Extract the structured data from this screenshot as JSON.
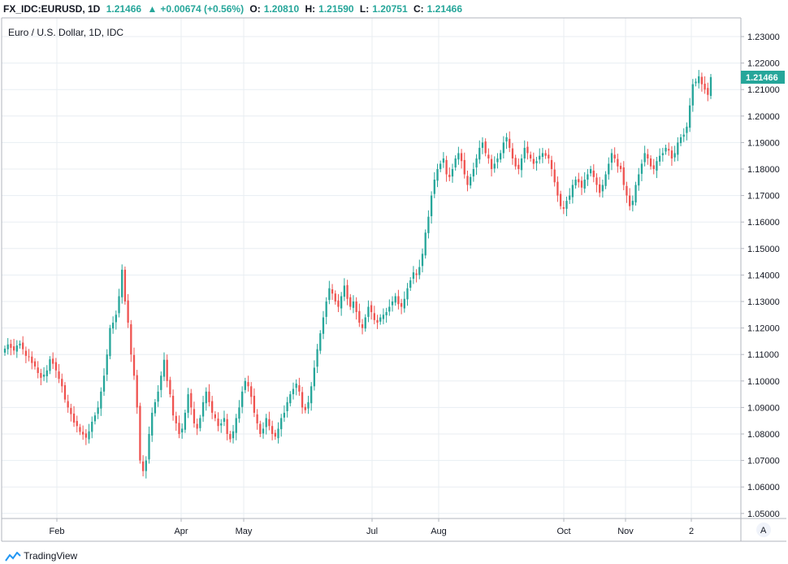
{
  "header": {
    "symbol": "FX_IDC:EURUSD, 1D",
    "last": "1.21466",
    "change": "+0.00674 (+0.56%)",
    "o_label": "O:",
    "o_val": "1.20810",
    "h_label": "H:",
    "h_val": "1.21590",
    "l_label": "L:",
    "l_val": "1.20751",
    "c_label": "C:",
    "c_val": "1.21466"
  },
  "footer": {
    "brand": "TradingView"
  },
  "colors": {
    "up": "#26a69a",
    "down": "#ef5350",
    "grid": "#e8eef2",
    "axis": "#b2b5be"
  },
  "chart_data": {
    "type": "candlestick",
    "title": "Euro / U.S. Dollar, 1D, IDC",
    "ylim": [
      1.045,
      1.235
    ],
    "y_ticks": [
      "1.05000",
      "1.06000",
      "1.07000",
      "1.08000",
      "1.09000",
      "1.10000",
      "1.11000",
      "1.12000",
      "1.13000",
      "1.14000",
      "1.15000",
      "1.16000",
      "1.17000",
      "1.18000",
      "1.19000",
      "1.20000",
      "1.21000",
      "1.22000",
      "1.23000"
    ],
    "x_ticks": [
      "Feb",
      "Apr",
      "May",
      "Jul",
      "Aug",
      "Oct",
      "Nov",
      "2"
    ],
    "last_price_label": "1.21466",
    "scale_mode_label": "A",
    "grid": true,
    "series": [
      {
        "name": "EURUSD",
        "close_path": [
          1.1122,
          1.1138,
          1.1125,
          1.1115,
          1.1134,
          1.1141,
          1.112,
          1.1095,
          1.109,
          1.1068,
          1.1055,
          1.103,
          1.1012,
          1.1024,
          1.104,
          1.1082,
          1.1065,
          1.104,
          1.1008,
          1.098,
          1.093,
          1.09,
          1.0875,
          1.0843,
          1.083,
          1.0808,
          1.0798,
          1.0786,
          1.081,
          1.0846,
          1.087,
          1.09,
          1.096,
          1.102,
          1.11,
          1.12,
          1.122,
          1.125,
          1.132,
          1.142,
          1.13,
          1.122,
          1.11,
          1.102,
          1.09,
          1.07,
          1.066,
          1.07,
          1.08,
          1.088,
          1.092,
          1.096,
          1.102,
          1.108,
          1.1,
          1.095,
          1.087,
          1.084,
          1.08,
          1.082,
          1.088,
          1.095,
          1.09,
          1.084,
          1.082,
          1.086,
          1.092,
          1.096,
          1.092,
          1.088,
          1.086,
          1.083,
          1.084,
          1.086,
          1.08,
          1.078,
          1.081,
          1.086,
          1.09,
          1.096,
          1.1,
          1.098,
          1.094,
          1.088,
          1.084,
          1.08,
          1.082,
          1.086,
          1.083,
          1.08,
          1.079,
          1.082,
          1.086,
          1.088,
          1.092,
          1.095,
          1.097,
          1.099,
          1.096,
          1.09,
          1.089,
          1.092,
          1.098,
          1.105,
          1.112,
          1.118,
          1.124,
          1.13,
          1.135,
          1.133,
          1.13,
          1.128,
          1.132,
          1.136,
          1.131,
          1.128,
          1.13,
          1.126,
          1.122,
          1.12,
          1.124,
          1.128,
          1.126,
          1.123,
          1.122,
          1.124,
          1.125,
          1.126,
          1.128,
          1.13,
          1.132,
          1.129,
          1.128,
          1.131,
          1.135,
          1.138,
          1.141,
          1.14,
          1.143,
          1.148,
          1.156,
          1.162,
          1.17,
          1.176,
          1.18,
          1.182,
          1.184,
          1.178,
          1.177,
          1.18,
          1.184,
          1.186,
          1.183,
          1.178,
          1.174,
          1.177,
          1.18,
          1.184,
          1.188,
          1.19,
          1.186,
          1.184,
          1.18,
          1.182,
          1.184,
          1.186,
          1.19,
          1.192,
          1.188,
          1.184,
          1.181,
          1.18,
          1.184,
          1.188,
          1.186,
          1.184,
          1.182,
          1.183,
          1.185,
          1.186,
          1.185,
          1.184,
          1.18,
          1.175,
          1.17,
          1.166,
          1.165,
          1.168,
          1.17,
          1.174,
          1.176,
          1.175,
          1.173,
          1.176,
          1.178,
          1.18,
          1.177,
          1.174,
          1.171,
          1.174,
          1.178,
          1.182,
          1.186,
          1.184,
          1.181,
          1.18,
          1.174,
          1.17,
          1.166,
          1.168,
          1.174,
          1.178,
          1.182,
          1.186,
          1.184,
          1.181,
          1.18,
          1.183,
          1.185,
          1.186,
          1.188,
          1.187,
          1.184,
          1.186,
          1.19,
          1.192,
          1.193,
          1.196,
          1.204,
          1.212,
          1.213,
          1.215,
          1.212,
          1.21,
          1.208,
          1.2147
        ]
      }
    ]
  }
}
